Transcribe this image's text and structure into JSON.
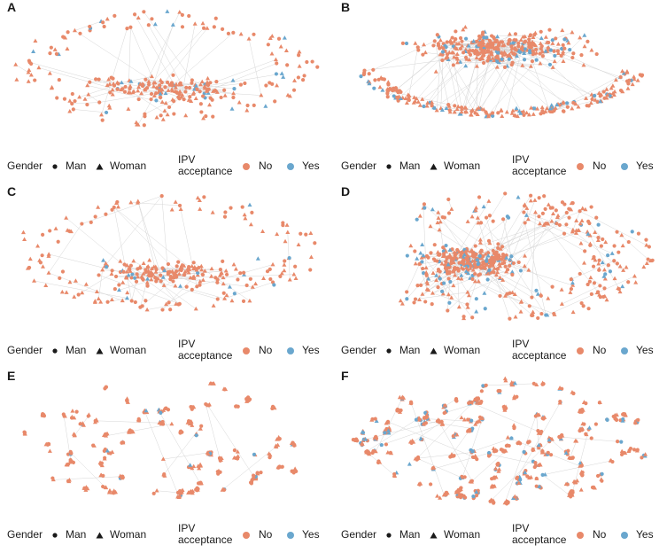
{
  "colors": {
    "no": "#E8896A",
    "yes": "#6AA7CE",
    "edge": "#d6d6d6"
  },
  "panels": [
    {
      "label": "A",
      "layout": "ellipse_with_cluster",
      "nodes": 300,
      "yes_share": 0.08,
      "seed": 11
    },
    {
      "label": "B",
      "layout": "dense_cluster_with_arc",
      "nodes": 560,
      "yes_share": 0.18,
      "seed": 23
    },
    {
      "label": "C",
      "layout": "ellipse_with_cluster",
      "nodes": 300,
      "yes_share": 0.08,
      "seed": 37
    },
    {
      "label": "D",
      "layout": "dense_cluster_with_spiral",
      "nodes": 560,
      "yes_share": 0.15,
      "seed": 41
    },
    {
      "label": "E",
      "layout": "scattered_clumps",
      "nodes": 330,
      "yes_share": 0.08,
      "seed": 53
    },
    {
      "label": "F",
      "layout": "scattered_clumps_dense",
      "nodes": 620,
      "yes_share": 0.18,
      "seed": 67
    }
  ],
  "legend": {
    "gender_title": "Gender",
    "man": "Man",
    "woman": "Woman",
    "ipv_title": "IPV acceptance",
    "no": "No",
    "yes": "Yes"
  }
}
